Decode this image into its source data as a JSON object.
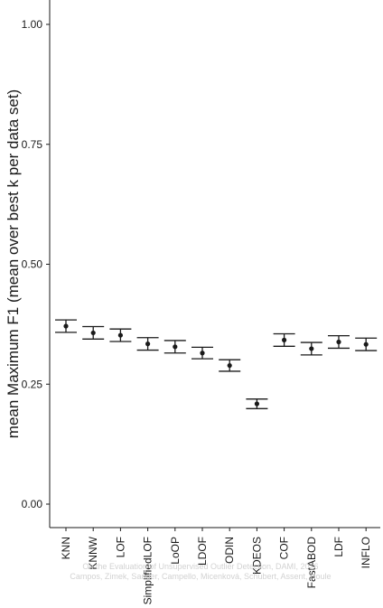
{
  "chart_data": {
    "type": "scatter",
    "ylabel": "mean Maximum F1 (mean over best k per data set)",
    "ylim": [
      0,
      1
    ],
    "yticks": [
      "0.00",
      "0.25",
      "0.50",
      "0.75",
      "1.00"
    ],
    "grid": false,
    "categories": [
      "KNN",
      "KNNW",
      "LOF",
      "SimplifiedLOF",
      "LoOP",
      "LDOF",
      "ODIN",
      "KDEOS",
      "COF",
      "FastABOD",
      "LDF",
      "INFLO"
    ],
    "means": [
      0.371,
      0.357,
      0.352,
      0.334,
      0.328,
      0.315,
      0.289,
      0.209,
      0.342,
      0.324,
      0.338,
      0.333
    ],
    "lower": [
      0.358,
      0.344,
      0.339,
      0.321,
      0.315,
      0.303,
      0.277,
      0.199,
      0.329,
      0.311,
      0.325,
      0.32
    ],
    "upper": [
      0.384,
      0.37,
      0.365,
      0.347,
      0.341,
      0.327,
      0.301,
      0.219,
      0.355,
      0.337,
      0.351,
      0.346
    ]
  },
  "watermark": {
    "line1": "On the Evaluation of Unsupervised Outlier Detection, DAMI, 2016",
    "line2": "Campos, Zimek, Sander, Campello, Micenková, Schubert, Assent, Houle"
  }
}
